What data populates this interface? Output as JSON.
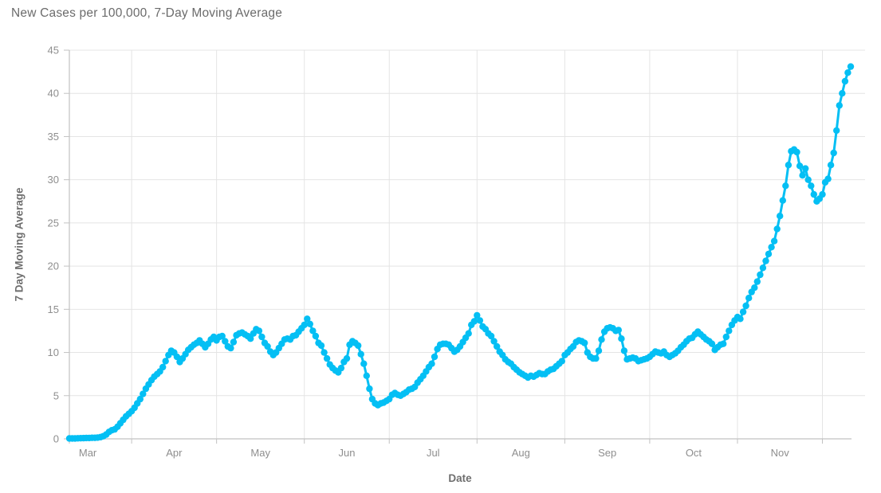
{
  "header": {
    "title": "New Cases per 100,000, 7-Day Moving Average"
  },
  "colors": {
    "line": "#04BFF4",
    "grid": "#e4e4e4",
    "axis": "#c2c2c2",
    "tick_text": "#8e8e8e",
    "title_text": "#6b6b6b"
  },
  "chart_data": {
    "type": "line",
    "title": "New Cases per 100,000, 7-Day Moving Average",
    "xlabel": "Date",
    "ylabel": "7 Day Moving Average",
    "ylim": [
      0,
      45
    ],
    "y_ticks": [
      0,
      5,
      10,
      15,
      20,
      25,
      30,
      35,
      40,
      45
    ],
    "grid": true,
    "legend": "none",
    "marker": "circle",
    "x_tick_labels": [
      "Mar",
      "Apr",
      "May",
      "Jun",
      "Jul",
      "Aug",
      "Sep",
      "Oct",
      "Nov"
    ],
    "month_label_center_days": [
      6.5,
      37,
      67.5,
      98,
      128.5,
      159.5,
      190,
      220.5,
      251
    ],
    "month_boundary_days": [
      22,
      52,
      83,
      113,
      144,
      175,
      205,
      236,
      266
    ],
    "x_description": "daily points, day 0 = first plotted day in March; boundaries mark the 1st of Apr-Dec",
    "values": [
      0.05,
      0.05,
      0.05,
      0.06,
      0.07,
      0.08,
      0.1,
      0.1,
      0.12,
      0.12,
      0.15,
      0.2,
      0.3,
      0.5,
      0.8,
      1.0,
      1.1,
      1.4,
      1.8,
      2.2,
      2.6,
      2.9,
      3.2,
      3.6,
      4.1,
      4.6,
      5.2,
      5.8,
      6.3,
      6.8,
      7.2,
      7.5,
      7.8,
      8.3,
      9.0,
      9.7,
      10.2,
      10.0,
      9.5,
      8.9,
      9.3,
      9.8,
      10.3,
      10.6,
      10.9,
      11.1,
      11.4,
      11.0,
      10.6,
      11.0,
      11.5,
      11.8,
      11.4,
      11.8,
      11.9,
      11.3,
      10.7,
      10.5,
      11.2,
      12.0,
      12.2,
      12.3,
      12.1,
      11.9,
      11.6,
      12.2,
      12.7,
      12.5,
      11.8,
      11.1,
      10.7,
      10.1,
      9.7,
      10.0,
      10.5,
      11.0,
      11.5,
      11.6,
      11.5,
      11.9,
      12.0,
      12.4,
      12.8,
      13.2,
      13.9,
      13.3,
      12.5,
      11.9,
      11.1,
      10.8,
      10.0,
      9.3,
      8.6,
      8.2,
      7.9,
      7.7,
      8.2,
      8.9,
      9.3,
      10.9,
      11.3,
      11.1,
      10.8,
      9.8,
      8.7,
      7.3,
      5.8,
      4.6,
      4.1,
      3.9,
      4.1,
      4.2,
      4.4,
      4.6,
      5.1,
      5.3,
      5.1,
      5.0,
      5.2,
      5.4,
      5.7,
      5.8,
      6.0,
      6.5,
      6.9,
      7.3,
      7.8,
      8.3,
      8.7,
      9.5,
      10.4,
      10.9,
      11.0,
      11.0,
      10.9,
      10.5,
      10.1,
      10.3,
      10.7,
      11.2,
      11.7,
      12.2,
      13.2,
      13.6,
      14.3,
      13.7,
      13.0,
      12.7,
      12.2,
      11.9,
      11.3,
      10.7,
      10.1,
      9.7,
      9.2,
      8.9,
      8.7,
      8.3,
      8.0,
      7.7,
      7.5,
      7.3,
      7.1,
      7.3,
      7.2,
      7.4,
      7.6,
      7.5,
      7.5,
      7.8,
      8.0,
      8.1,
      8.4,
      8.7,
      9.0,
      9.7,
      10.0,
      10.4,
      10.7,
      11.2,
      11.4,
      11.3,
      11.1,
      10.0,
      9.5,
      9.3,
      9.3,
      10.2,
      11.5,
      12.4,
      12.8,
      12.9,
      12.8,
      12.5,
      12.6,
      11.6,
      10.2,
      9.2,
      9.3,
      9.4,
      9.3,
      9.0,
      9.1,
      9.2,
      9.3,
      9.5,
      9.8,
      10.1,
      10.0,
      9.9,
      10.1,
      9.7,
      9.5,
      9.7,
      9.9,
      10.2,
      10.6,
      10.9,
      11.3,
      11.6,
      11.7,
      12.1,
      12.4,
      12.1,
      11.8,
      11.5,
      11.3,
      11.0,
      10.3,
      10.6,
      10.9,
      11.0,
      11.8,
      12.5,
      13.2,
      13.7,
      14.1,
      13.9,
      14.7,
      15.4,
      16.3,
      17.0,
      17.5,
      18.2,
      19.0,
      19.8,
      20.6,
      21.4,
      22.2,
      22.9,
      24.3,
      25.8,
      27.6,
      29.3,
      31.7,
      33.3,
      33.5,
      33.2,
      31.6,
      30.5,
      31.3,
      30.0,
      29.3,
      28.3,
      27.5,
      27.8,
      28.3,
      29.7,
      30.1,
      31.7,
      33.1,
      35.7,
      38.6,
      40.0,
      41.4,
      42.4,
      43.1
    ]
  }
}
